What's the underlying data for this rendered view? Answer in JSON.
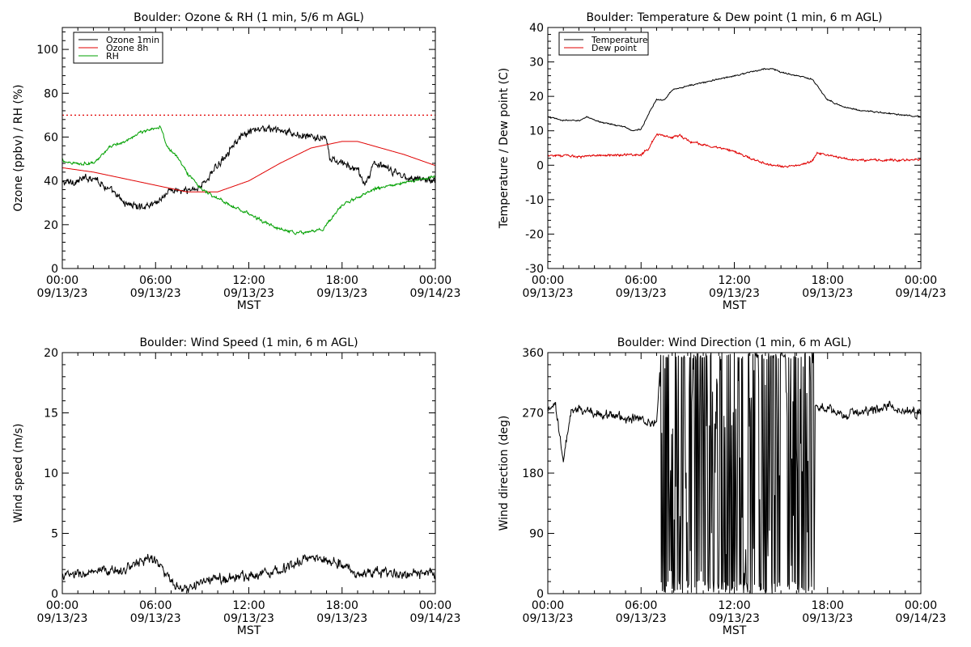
{
  "chart_data": [
    {
      "id": "ozone_rh",
      "type": "line",
      "title": "Boulder: Ozone & RH (1 min, 5/6 m AGL)",
      "xlabel": "MST",
      "ylabel": "Ozone (ppbv) / RH (%)",
      "xlim": [
        0,
        24
      ],
      "ylim": [
        0,
        110
      ],
      "yticks": [
        0,
        20,
        40,
        60,
        80,
        100
      ],
      "xtick_labels": [
        {
          "time": "00:00",
          "date": "09/13/23"
        },
        {
          "time": "06:00",
          "date": "09/13/23"
        },
        {
          "time": "12:00",
          "date": "09/13/23"
        },
        {
          "time": "18:00",
          "date": "09/13/23"
        },
        {
          "time": "00:00",
          "date": "09/14/23"
        }
      ],
      "legend_position": "top-left",
      "reference_line": {
        "y": 70,
        "color": "#e00000",
        "style": "dotted"
      },
      "series": [
        {
          "name": "Ozone 1min",
          "color": "#000000",
          "noise": 2.5,
          "x": [
            0,
            1,
            2,
            3,
            4,
            5,
            6,
            6.5,
            7,
            8,
            9,
            10,
            11,
            12,
            13,
            14,
            15,
            16,
            17,
            17.2,
            18,
            19,
            19.5,
            20,
            21,
            22,
            23,
            24
          ],
          "y": [
            39,
            40,
            42,
            36,
            30,
            28,
            30,
            33,
            36,
            35,
            38,
            47,
            57,
            62,
            64,
            63,
            61,
            60,
            59,
            50,
            48,
            45,
            38,
            48,
            45,
            42,
            41,
            40
          ]
        },
        {
          "name": "Ozone 8h",
          "color": "#e00000",
          "noise": 0,
          "x": [
            0,
            2,
            4,
            6,
            8,
            10,
            12,
            14,
            16,
            18,
            19,
            20,
            22,
            24
          ],
          "y": [
            46,
            44,
            41,
            38,
            35,
            35,
            40,
            48,
            55,
            58,
            58,
            56,
            52,
            47
          ]
        },
        {
          "name": "RH",
          "color": "#00a000",
          "noise": 1,
          "x": [
            0,
            1,
            2,
            3,
            4,
            5,
            6,
            6.3,
            6.8,
            7.5,
            8,
            9,
            10,
            11,
            12,
            13,
            14,
            15,
            16,
            16.8,
            17.2,
            18,
            20,
            22,
            24
          ],
          "y": [
            49,
            48,
            48,
            55,
            58,
            62,
            64,
            65,
            55,
            50,
            44,
            36,
            32,
            28,
            25,
            21,
            18,
            16,
            17,
            18,
            22,
            29,
            36,
            39,
            42
          ]
        }
      ]
    },
    {
      "id": "temp_dew",
      "type": "line",
      "title": "Boulder: Temperature & Dew point (1 min, 6 m AGL)",
      "xlabel": "MST",
      "ylabel": "Temperature / Dew point (C)",
      "xlim": [
        0,
        24
      ],
      "ylim": [
        -30,
        40
      ],
      "yticks": [
        -30,
        -20,
        -10,
        0,
        10,
        20,
        30,
        40
      ],
      "xtick_labels": [
        {
          "time": "00:00",
          "date": "09/13/23"
        },
        {
          "time": "06:00",
          "date": "09/13/23"
        },
        {
          "time": "12:00",
          "date": "09/13/23"
        },
        {
          "time": "18:00",
          "date": "09/13/23"
        },
        {
          "time": "00:00",
          "date": "09/14/23"
        }
      ],
      "legend_position": "top-left",
      "series": [
        {
          "name": "Temperature",
          "color": "#000000",
          "noise": 0.3,
          "x": [
            0,
            1,
            2,
            2.5,
            3,
            4,
            5,
            5.5,
            6,
            6.5,
            7,
            7.5,
            8,
            9,
            10,
            12,
            13,
            14,
            14.5,
            15,
            16,
            17,
            17.5,
            18,
            19,
            20,
            22,
            24
          ],
          "y": [
            14,
            13,
            13,
            14,
            13,
            12,
            11,
            10,
            10.5,
            15,
            19,
            19,
            22,
            23,
            24,
            26,
            27,
            28,
            28,
            27,
            26,
            25,
            22,
            19,
            17,
            16,
            15,
            14
          ]
        },
        {
          "name": "Dew point",
          "color": "#e00000",
          "noise": 0.5,
          "x": [
            0,
            2,
            4,
            6,
            6.5,
            7,
            8,
            8.5,
            9,
            10,
            11,
            12,
            13,
            14,
            15,
            16,
            17,
            17.3,
            18,
            19,
            20,
            22,
            24
          ],
          "y": [
            3,
            2.5,
            3,
            3,
            5,
            9,
            8,
            9,
            7,
            6,
            5,
            4,
            2,
            0.5,
            -0.5,
            0,
            1,
            3.5,
            3,
            2,
            1.5,
            1.5,
            1.5
          ]
        }
      ]
    },
    {
      "id": "wind_speed",
      "type": "line",
      "title": "Boulder: Wind Speed (1 min, 6 m AGL)",
      "xlabel": "MST",
      "ylabel": "Wind speed (m/s)",
      "xlim": [
        0,
        24
      ],
      "ylim": [
        0,
        20
      ],
      "yticks": [
        0,
        5,
        10,
        15,
        20
      ],
      "xtick_labels": [
        {
          "time": "00:00",
          "date": "09/13/23"
        },
        {
          "time": "06:00",
          "date": "09/13/23"
        },
        {
          "time": "12:00",
          "date": "09/13/23"
        },
        {
          "time": "18:00",
          "date": "09/13/23"
        },
        {
          "time": "00:00",
          "date": "09/14/23"
        }
      ],
      "series": [
        {
          "name": "",
          "color": "#000000",
          "noise": 0.6,
          "x": [
            0,
            2,
            4,
            5.5,
            6,
            7,
            7.5,
            8,
            9,
            10,
            12,
            14,
            15,
            16,
            17,
            18,
            19,
            20,
            22,
            24
          ],
          "y": [
            1.5,
            1.7,
            2,
            3,
            2.8,
            1,
            0.3,
            0.3,
            1,
            1.2,
            1.5,
            2,
            2.5,
            3,
            2.8,
            2.5,
            1.5,
            1.8,
            1.6,
            1.6
          ]
        }
      ]
    },
    {
      "id": "wind_dir",
      "type": "line",
      "title": "Boulder: Wind Direction (1 min, 6 m AGL)",
      "xlabel": "MST",
      "ylabel": "Wind direction (deg)",
      "xlim": [
        0,
        24
      ],
      "ylim": [
        0,
        360
      ],
      "yticks": [
        0,
        90,
        180,
        270,
        360
      ],
      "xtick_labels": [
        {
          "time": "00:00",
          "date": "09/13/23"
        },
        {
          "time": "06:00",
          "date": "09/13/23"
        },
        {
          "time": "12:00",
          "date": "09/13/23"
        },
        {
          "time": "18:00",
          "date": "09/13/23"
        },
        {
          "time": "00:00",
          "date": "09/14/23"
        }
      ],
      "series": [
        {
          "name": "",
          "color": "#000000",
          "noise": 10,
          "wrap": true,
          "chaos": [
            7.2,
            17.2
          ],
          "x": [
            0,
            0.5,
            0.8,
            1,
            1.5,
            2,
            3,
            4,
            5,
            6,
            7,
            7.2,
            18,
            19,
            20,
            21,
            22,
            23,
            24
          ],
          "y": [
            270,
            280,
            230,
            200,
            270,
            275,
            270,
            268,
            262,
            260,
            255,
            330,
            275,
            265,
            272,
            275,
            280,
            272,
            270
          ]
        }
      ]
    }
  ]
}
